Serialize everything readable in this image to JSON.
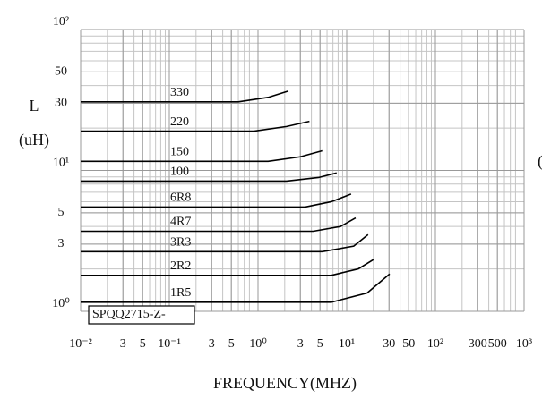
{
  "chart_data": {
    "type": "line",
    "y_label_1": "L",
    "y_label_2": "(uH)",
    "x_label": "FREQUENCY(MHZ)",
    "annotation": "SPQQ2715-Z-",
    "right_label": "(",
    "log_x": true,
    "log_y": true,
    "grid": true,
    "color": "#000000",
    "xlim": [
      0.01,
      1000
    ],
    "ylim": [
      1,
      100
    ],
    "xticks": [
      {
        "value": 0.01,
        "label": "10⁻²"
      },
      {
        "value": 0.03,
        "label": "3"
      },
      {
        "value": 0.05,
        "label": "5"
      },
      {
        "value": 0.1,
        "label": "10⁻¹"
      },
      {
        "value": 0.3,
        "label": "3"
      },
      {
        "value": 0.5,
        "label": "5"
      },
      {
        "value": 1,
        "label": "10⁰"
      },
      3,
      5,
      {
        "value": 10,
        "label": "10¹"
      },
      30,
      50,
      {
        "value": 100,
        "label": "10²"
      },
      300,
      500,
      {
        "value": 1000,
        "label": "10³"
      }
    ],
    "yticks": [
      {
        "value": 1,
        "label": "10⁰"
      },
      3,
      5,
      {
        "value": 10,
        "label": "10¹"
      },
      30,
      50,
      {
        "value": 100,
        "label": "10²"
      }
    ],
    "series": [
      {
        "name": "330",
        "x": [
          0.01,
          0.6,
          1.3,
          2.2
        ],
        "values": [
          30.7,
          30.7,
          33,
          36.6
        ]
      },
      {
        "name": "220",
        "x": [
          0.01,
          0.9,
          2.1,
          3.8
        ],
        "values": [
          19,
          19,
          20.5,
          22.3
        ]
      },
      {
        "name": "150",
        "x": [
          0.01,
          1.3,
          3,
          5.3
        ],
        "values": [
          11.6,
          11.6,
          12.5,
          13.8
        ]
      },
      {
        "name": "100",
        "x": [
          0.01,
          2.1,
          4.8,
          7.7
        ],
        "values": [
          8.4,
          8.4,
          8.9,
          9.6
        ]
      },
      {
        "name": "6R8",
        "x": [
          0.01,
          3.4,
          6.7,
          11.2
        ],
        "values": [
          5.5,
          5.5,
          6,
          6.8
        ]
      },
      {
        "name": "4R7",
        "x": [
          0.01,
          4.2,
          8.5,
          12.6
        ],
        "values": [
          3.7,
          3.7,
          4,
          4.6
        ]
      },
      {
        "name": "3R3",
        "x": [
          0.01,
          5.3,
          12,
          17.4
        ],
        "values": [
          2.65,
          2.65,
          2.9,
          3.5
        ]
      },
      {
        "name": "2R2",
        "x": [
          0.01,
          6.7,
          13.5,
          20
        ],
        "values": [
          1.8,
          1.8,
          2,
          2.33
        ]
      },
      {
        "name": "1R5",
        "x": [
          0.01,
          6.7,
          17,
          30.5
        ],
        "values": [
          1.16,
          1.16,
          1.35,
          1.84
        ]
      }
    ]
  }
}
